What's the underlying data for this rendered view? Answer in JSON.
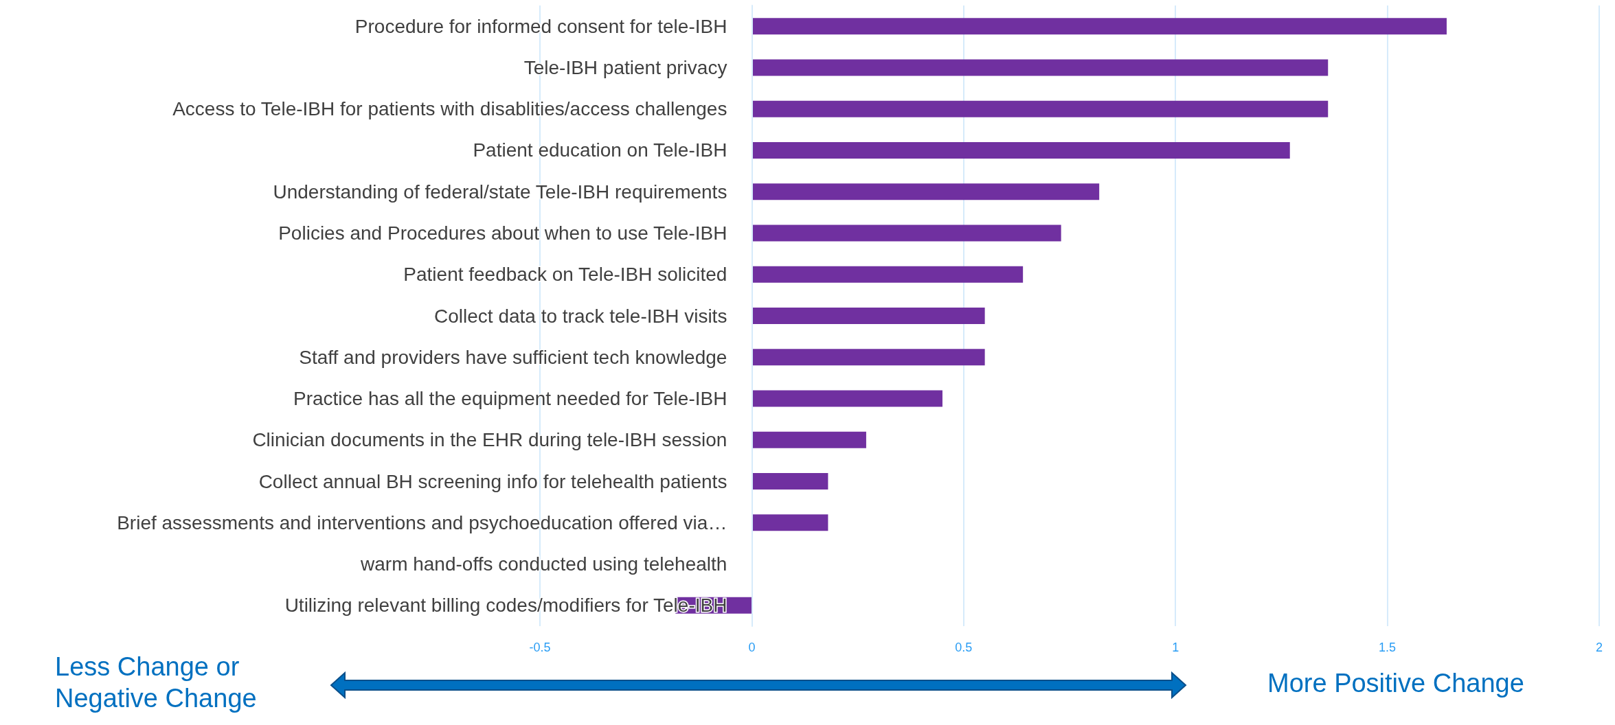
{
  "chart_data": {
    "type": "bar",
    "orientation": "horizontal",
    "categories": [
      "Procedure for informed consent for tele-IBH",
      "Tele-IBH patient privacy",
      "Access to Tele-IBH for patients with disablities/access challenges",
      "Patient education on Tele-IBH",
      "Understanding of federal/state Tele-IBH requirements",
      "Policies and Procedures about when to use Tele-IBH",
      "Patient feedback on Tele-IBH solicited",
      "Collect data to track tele-IBH visits",
      "Staff and providers have sufficient tech knowledge",
      "Practice has all the equipment needed for Tele-IBH",
      "Clinician documents in the EHR during tele-IBH session",
      "Collect annual BH screening info for telehealth patients",
      "Brief assessments and interventions and psychoeducation offered via…",
      "warm hand-offs conducted using telehealth",
      "Utilizing relevant billing codes/modifiers for Tele-IBH"
    ],
    "values": [
      1.64,
      1.36,
      1.36,
      1.27,
      0.82,
      0.73,
      0.64,
      0.55,
      0.55,
      0.45,
      0.27,
      0.18,
      0.18,
      0,
      -0.18
    ],
    "color": "#7030a0",
    "xlim": [
      -0.5,
      2
    ],
    "xticks": [
      -0.5,
      0,
      0.5,
      1,
      1.5,
      2
    ],
    "grid": "x",
    "annotations": [
      "Less Change or Negative Change",
      "More Positive Change"
    ]
  }
}
